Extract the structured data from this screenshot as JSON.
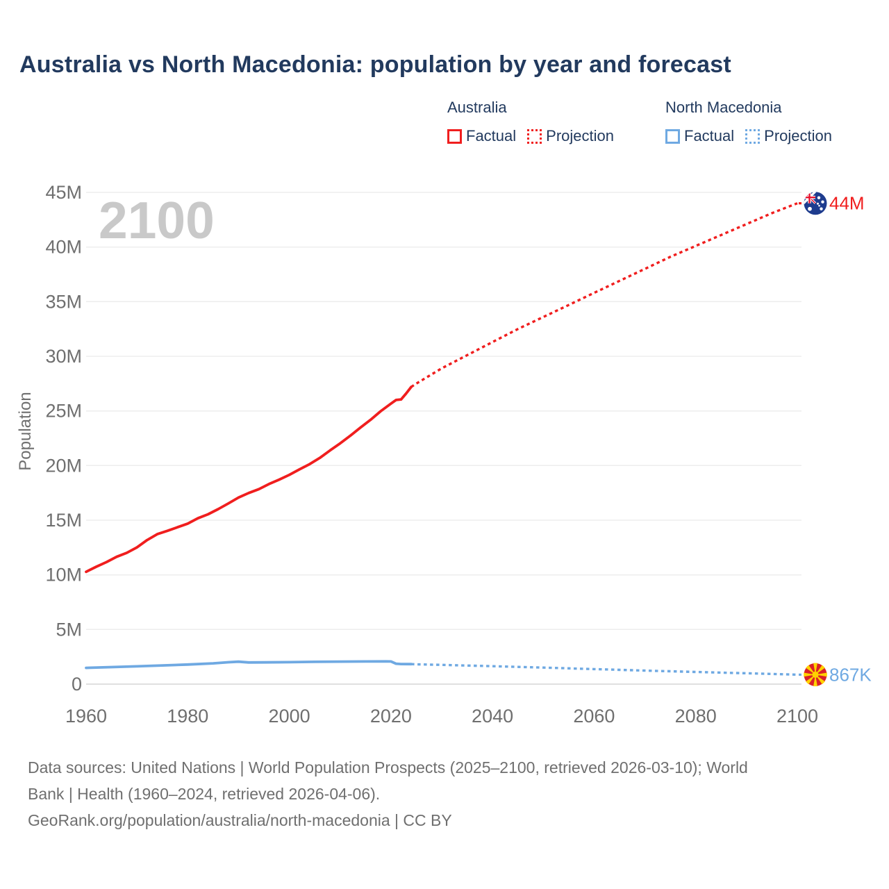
{
  "title": "Australia vs North Macedonia: population by year and forecast",
  "watermark": "2100",
  "legend": {
    "groups": [
      {
        "label": "Australia",
        "color": "#f01e1e",
        "items": [
          {
            "label": "Factual",
            "style": "solid"
          },
          {
            "label": "Projection",
            "style": "dotted"
          }
        ]
      },
      {
        "label": "North Macedonia",
        "color": "#6fa9e2",
        "items": [
          {
            "label": "Factual",
            "style": "solid"
          },
          {
            "label": "Projection",
            "style": "dotted"
          }
        ]
      }
    ]
  },
  "chart_data": {
    "type": "line",
    "title": "Australia vs North Macedonia: population by year and forecast",
    "xlabel": "",
    "ylabel": "Population",
    "values_unit": "millions of people",
    "xlim": [
      1960,
      2100
    ],
    "ylim": [
      0,
      45
    ],
    "xticks": [
      1960,
      1980,
      2000,
      2020,
      2040,
      2060,
      2080,
      2100
    ],
    "yticks": [
      0,
      5,
      10,
      15,
      20,
      25,
      30,
      35,
      40,
      45
    ],
    "ytick_labels": [
      "0",
      "5M",
      "10M",
      "15M",
      "20M",
      "25M",
      "30M",
      "35M",
      "40M",
      "45M"
    ],
    "grid": "horizontal",
    "legend_position": "top-right",
    "series": [
      {
        "name": "Australia Factual",
        "id": "australia-factual",
        "color": "#f01e1e",
        "style": "solid",
        "points": [
          [
            1960,
            10.28
          ],
          [
            1962,
            10.74
          ],
          [
            1964,
            11.17
          ],
          [
            1966,
            11.65
          ],
          [
            1968,
            12.01
          ],
          [
            1970,
            12.51
          ],
          [
            1972,
            13.18
          ],
          [
            1974,
            13.72
          ],
          [
            1976,
            14.03
          ],
          [
            1978,
            14.36
          ],
          [
            1980,
            14.69
          ],
          [
            1982,
            15.18
          ],
          [
            1984,
            15.54
          ],
          [
            1986,
            16.02
          ],
          [
            1988,
            16.53
          ],
          [
            1990,
            17.07
          ],
          [
            1992,
            17.49
          ],
          [
            1994,
            17.84
          ],
          [
            1996,
            18.31
          ],
          [
            1998,
            18.71
          ],
          [
            2000,
            19.15
          ],
          [
            2002,
            19.65
          ],
          [
            2004,
            20.13
          ],
          [
            2006,
            20.7
          ],
          [
            2008,
            21.38
          ],
          [
            2010,
            22.03
          ],
          [
            2012,
            22.73
          ],
          [
            2014,
            23.48
          ],
          [
            2016,
            24.19
          ],
          [
            2018,
            24.98
          ],
          [
            2020,
            25.67
          ],
          [
            2021,
            26.0
          ],
          [
            2022,
            26.05
          ],
          [
            2023,
            26.6
          ],
          [
            2024,
            27.2
          ]
        ]
      },
      {
        "name": "Australia Projection",
        "id": "australia-projection",
        "color": "#f01e1e",
        "style": "dotted",
        "points": [
          [
            2024,
            27.2
          ],
          [
            2025,
            27.5
          ],
          [
            2030,
            28.9
          ],
          [
            2035,
            30.1
          ],
          [
            2040,
            31.3
          ],
          [
            2045,
            32.5
          ],
          [
            2050,
            33.6
          ],
          [
            2055,
            34.7
          ],
          [
            2060,
            35.8
          ],
          [
            2065,
            36.9
          ],
          [
            2070,
            38.0
          ],
          [
            2075,
            39.1
          ],
          [
            2080,
            40.1
          ],
          [
            2085,
            41.1
          ],
          [
            2090,
            42.1
          ],
          [
            2095,
            43.1
          ],
          [
            2100,
            44.0
          ]
        ]
      },
      {
        "name": "North Macedonia Factual",
        "id": "north-macedonia-factual",
        "color": "#6fa9e2",
        "style": "solid",
        "points": [
          [
            1960,
            1.49
          ],
          [
            1965,
            1.56
          ],
          [
            1970,
            1.63
          ],
          [
            1975,
            1.71
          ],
          [
            1980,
            1.79
          ],
          [
            1985,
            1.9
          ],
          [
            1988,
            2.0
          ],
          [
            1990,
            2.05
          ],
          [
            1992,
            1.98
          ],
          [
            1995,
            1.99
          ],
          [
            2000,
            2.01
          ],
          [
            2005,
            2.04
          ],
          [
            2010,
            2.06
          ],
          [
            2015,
            2.07
          ],
          [
            2019,
            2.08
          ],
          [
            2020,
            2.07
          ],
          [
            2021,
            1.87
          ],
          [
            2022,
            1.84
          ],
          [
            2024,
            1.83
          ]
        ]
      },
      {
        "name": "North Macedonia Projection",
        "id": "north-macedonia-projection",
        "color": "#6fa9e2",
        "style": "dotted",
        "points": [
          [
            2024,
            1.83
          ],
          [
            2025,
            1.81
          ],
          [
            2030,
            1.76
          ],
          [
            2040,
            1.64
          ],
          [
            2050,
            1.51
          ],
          [
            2060,
            1.37
          ],
          [
            2070,
            1.24
          ],
          [
            2080,
            1.11
          ],
          [
            2090,
            0.99
          ],
          [
            2100,
            0.867
          ]
        ]
      }
    ],
    "end_labels": [
      {
        "series": "Australia",
        "flag": "australia",
        "text": "44M",
        "value": 44,
        "color": "#f01e1e"
      },
      {
        "series": "North Macedonia",
        "flag": "north-macedonia",
        "text": "867K",
        "value": 0.867,
        "color": "#6fa9e2"
      }
    ]
  },
  "flag_colors": {
    "australia_blue": "#1e3c8e",
    "union_jack_red": "#e8112d",
    "north_macedonia_red": "#da2128",
    "north_macedonia_yellow": "#ffd200"
  },
  "footer": {
    "lines": [
      "Data sources: United Nations | World Population Prospects (2025–2100, retrieved 2026-03-10); World",
      "Bank | Health (1960–2024, retrieved 2026-04-06).",
      "GeoRank.org/population/australia/north-macedonia | CC BY"
    ]
  }
}
